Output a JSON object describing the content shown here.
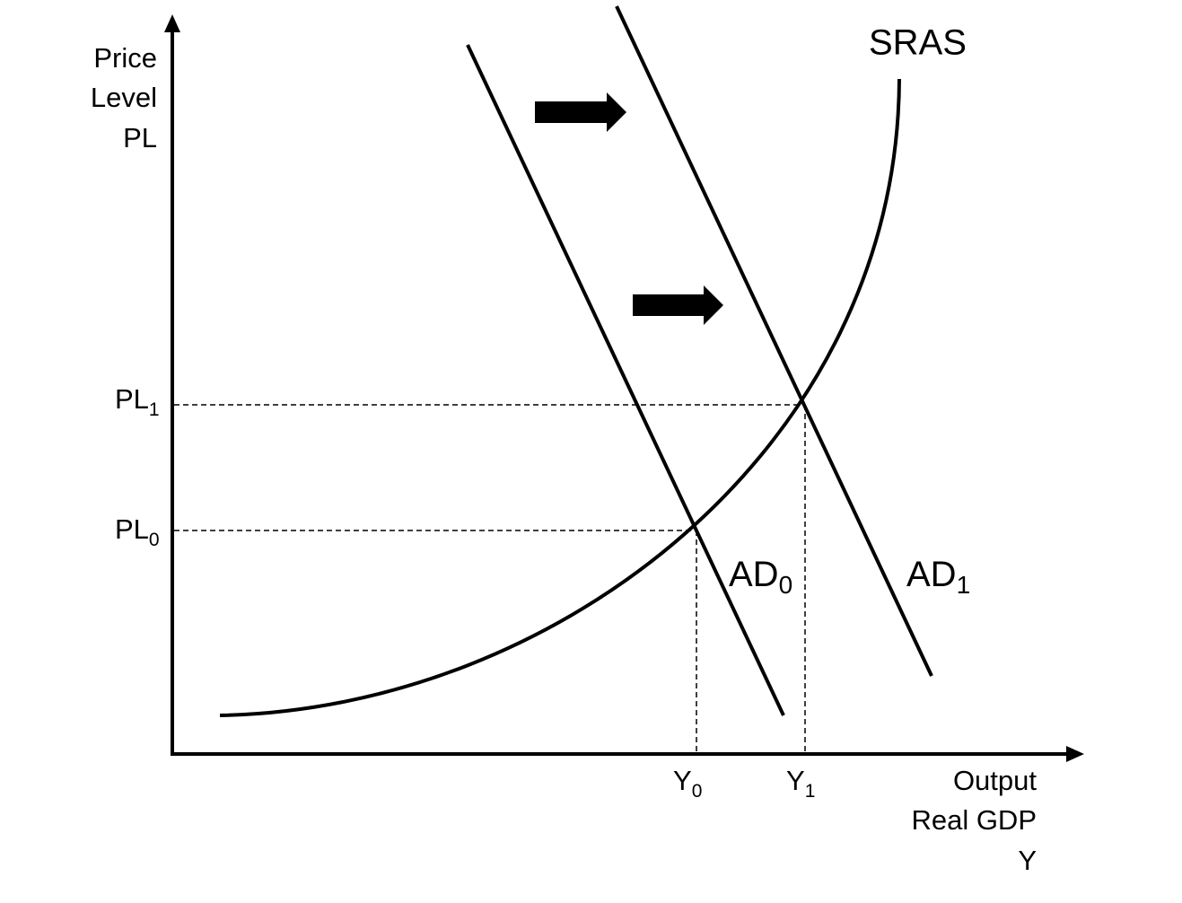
{
  "y_axis": {
    "label_lines": [
      "Price",
      "Level",
      "PL"
    ]
  },
  "x_axis": {
    "label_lines": [
      "Output",
      "Real GDP",
      "Y"
    ]
  },
  "price_levels": [
    {
      "main": "PL",
      "sub": "1"
    },
    {
      "main": "PL",
      "sub": "0"
    }
  ],
  "outputs": [
    {
      "main": "Y",
      "sub": "0"
    },
    {
      "main": "Y",
      "sub": "1"
    }
  ],
  "curves": [
    {
      "main": "SRAS"
    },
    {
      "main": "AD",
      "sub": "0"
    },
    {
      "main": "AD",
      "sub": "1"
    }
  ]
}
